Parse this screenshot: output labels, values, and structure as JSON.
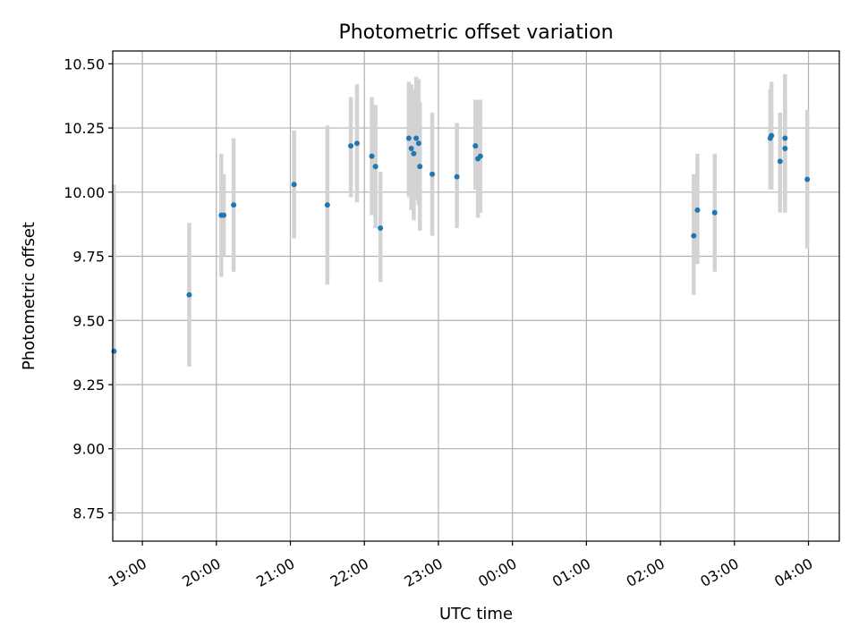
{
  "chart_data": {
    "type": "scatter",
    "title": "Photometric offset variation",
    "xlabel": "UTC time",
    "ylabel": "Photometric offset",
    "grid": true,
    "colors": {
      "point": "#1f77b4",
      "errorbar": "#d3d3d3"
    },
    "xlim": [
      "18:36",
      "04:25"
    ],
    "ylim": [
      8.64,
      10.55
    ],
    "x_ticks": [
      "19:00",
      "20:00",
      "21:00",
      "22:00",
      "23:00",
      "00:00",
      "01:00",
      "02:00",
      "03:00",
      "04:00"
    ],
    "y_ticks": [
      "8.75",
      "9.00",
      "9.25",
      "9.50",
      "9.75",
      "10.00",
      "10.25",
      "10.50"
    ],
    "points": [
      {
        "x": "18:37",
        "y": 9.38,
        "low": 8.72,
        "high": 10.03
      },
      {
        "x": "19:38",
        "y": 9.6,
        "low": 9.32,
        "high": 9.88
      },
      {
        "x": "20:04",
        "y": 9.91,
        "low": 9.67,
        "high": 10.15
      },
      {
        "x": "20:06",
        "y": 9.91,
        "low": 9.75,
        "high": 10.07
      },
      {
        "x": "20:14",
        "y": 9.95,
        "low": 9.69,
        "high": 10.21
      },
      {
        "x": "21:03",
        "y": 10.03,
        "low": 9.82,
        "high": 10.24
      },
      {
        "x": "21:30",
        "y": 9.95,
        "low": 9.64,
        "high": 10.26
      },
      {
        "x": "21:49",
        "y": 10.18,
        "low": 9.98,
        "high": 10.37
      },
      {
        "x": "21:54",
        "y": 10.19,
        "low": 9.96,
        "high": 10.42
      },
      {
        "x": "22:06",
        "y": 10.14,
        "low": 9.91,
        "high": 10.37
      },
      {
        "x": "22:09",
        "y": 10.1,
        "low": 9.86,
        "high": 10.34
      },
      {
        "x": "22:13",
        "y": 9.86,
        "low": 9.65,
        "high": 10.08
      },
      {
        "x": "22:36",
        "y": 10.21,
        "low": 9.98,
        "high": 10.43
      },
      {
        "x": "22:38",
        "y": 10.17,
        "low": 9.93,
        "high": 10.42
      },
      {
        "x": "22:40",
        "y": 10.15,
        "low": 9.89,
        "high": 10.4
      },
      {
        "x": "22:42",
        "y": 10.21,
        "low": 9.97,
        "high": 10.45
      },
      {
        "x": "22:44",
        "y": 10.19,
        "low": 9.95,
        "high": 10.44
      },
      {
        "x": "22:45",
        "y": 10.1,
        "low": 9.85,
        "high": 10.35
      },
      {
        "x": "22:55",
        "y": 10.07,
        "low": 9.83,
        "high": 10.31
      },
      {
        "x": "23:15",
        "y": 10.06,
        "low": 9.86,
        "high": 10.27
      },
      {
        "x": "23:30",
        "y": 10.18,
        "low": 10.01,
        "high": 10.36
      },
      {
        "x": "23:32",
        "y": 10.13,
        "low": 9.9,
        "high": 10.36
      },
      {
        "x": "23:34",
        "y": 10.14,
        "low": 9.92,
        "high": 10.36
      },
      {
        "x": "02:27",
        "y": 9.83,
        "low": 9.6,
        "high": 10.07
      },
      {
        "x": "02:30",
        "y": 9.93,
        "low": 9.72,
        "high": 10.15
      },
      {
        "x": "02:44",
        "y": 9.92,
        "low": 9.69,
        "high": 10.15
      },
      {
        "x": "03:29",
        "y": 10.21,
        "low": 10.01,
        "high": 10.4
      },
      {
        "x": "03:30",
        "y": 10.22,
        "low": 10.01,
        "high": 10.43
      },
      {
        "x": "03:37",
        "y": 10.12,
        "low": 9.92,
        "high": 10.31
      },
      {
        "x": "03:41",
        "y": 10.21,
        "low": 9.92,
        "high": 10.46
      },
      {
        "x": "03:41",
        "y": 10.17,
        "low": 9.96,
        "high": 10.38
      },
      {
        "x": "03:59",
        "y": 10.05,
        "low": 9.78,
        "high": 10.32
      }
    ]
  }
}
